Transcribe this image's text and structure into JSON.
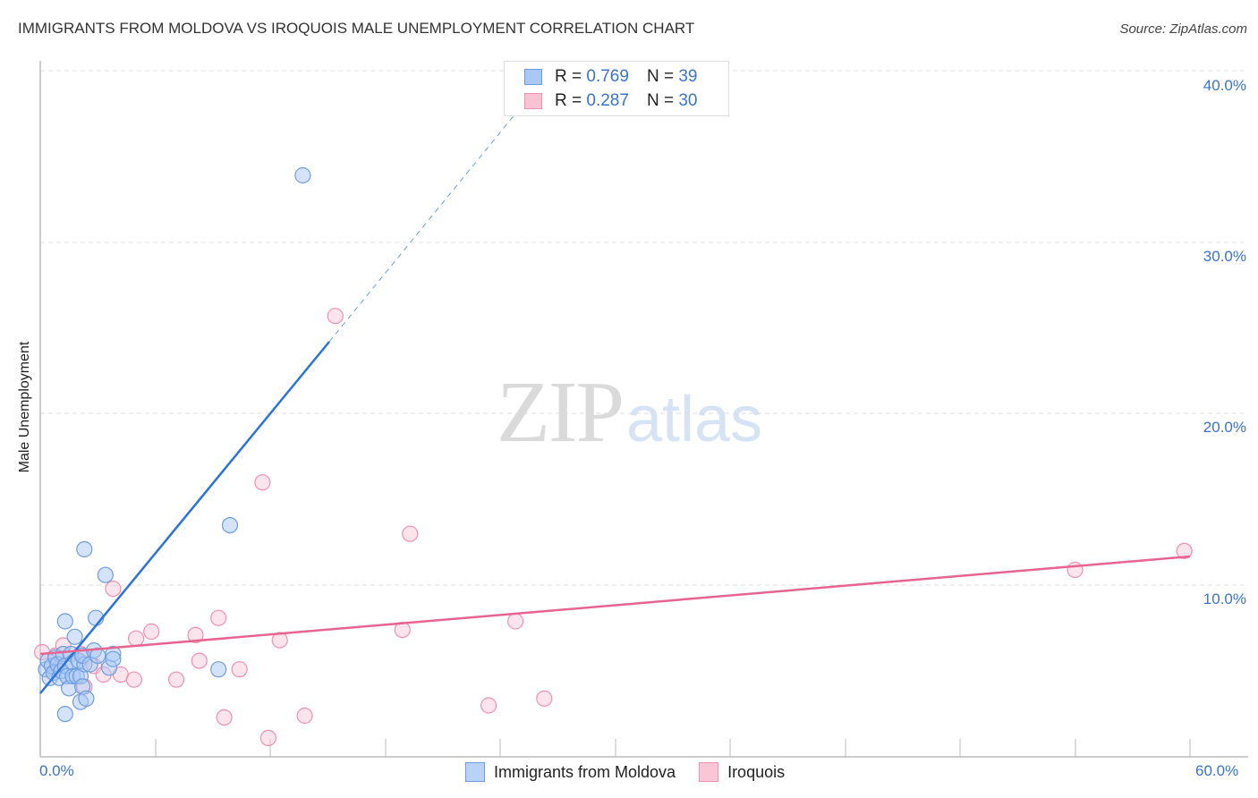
{
  "header": {
    "title": "IMMIGRANTS FROM MOLDOVA VS IROQUOIS MALE UNEMPLOYMENT CORRELATION CHART",
    "source": "Source: ZipAtlas.com"
  },
  "watermark": {
    "zip": "ZIP",
    "atlas": "atlas"
  },
  "legend": {
    "rows": [
      {
        "r_label": "R = ",
        "r_value": "0.769",
        "n_label": "N = ",
        "n_value": "39",
        "color": "#a9c8f3",
        "border": "#6d9de0"
      },
      {
        "r_label": "R = ",
        "r_value": "0.287",
        "n_label": "N = ",
        "n_value": "30",
        "color": "#f9c3d4",
        "border": "#ee91ae"
      }
    ]
  },
  "axes": {
    "ylabel": "Male Unemployment",
    "y_ticks": [
      "40.0%",
      "30.0%",
      "20.0%",
      "10.0%"
    ],
    "x_min_label": "0.0%",
    "x_max_label": "60.0%"
  },
  "bottom_legend": {
    "items": [
      {
        "label": "Immigrants from Moldova",
        "color": "#b8d3f7",
        "border": "#6d9de0"
      },
      {
        "label": "Iroquois",
        "color": "#fac6d6",
        "border": "#ee91ae"
      }
    ]
  },
  "colors": {
    "blue_line": "#2b73d6",
    "pink_line": "#e5658f",
    "tick_text": "#3a74cc"
  },
  "chart_data": {
    "type": "scatter",
    "title": "IMMIGRANTS FROM MOLDOVA VS IROQUOIS MALE UNEMPLOYMENT CORRELATION CHART",
    "xlabel": "",
    "ylabel": "Male Unemployment",
    "xlim": [
      0,
      60
    ],
    "ylim": [
      0,
      40
    ],
    "x_ticks": [
      "0.0%",
      "60.0%"
    ],
    "y_ticks": [
      "10.0%",
      "20.0%",
      "30.0%",
      "40.0%"
    ],
    "grid": "horizontal dashed",
    "legend_position": "top-center",
    "series": [
      {
        "name": "Immigrants from Moldova",
        "R": 0.769,
        "N": 39,
        "color": "#a9c8f3",
        "trend": {
          "x": [
            0,
            15.1
          ],
          "y": [
            3.7,
            24.2
          ],
          "dashed_extension_to": [
            25.4,
            38.4
          ]
        },
        "points": [
          [
            0.3,
            5.1
          ],
          [
            0.4,
            5.6
          ],
          [
            0.5,
            4.6
          ],
          [
            0.6,
            5.3
          ],
          [
            0.7,
            4.9
          ],
          [
            0.8,
            5.8
          ],
          [
            0.9,
            5.4
          ],
          [
            1.0,
            4.6
          ],
          [
            1.1,
            5.0
          ],
          [
            1.2,
            6.0
          ],
          [
            1.3,
            5.3
          ],
          [
            1.4,
            4.7
          ],
          [
            1.5,
            4.0
          ],
          [
            1.3,
            2.5
          ],
          [
            1.3,
            7.9
          ],
          [
            1.6,
            6.0
          ],
          [
            1.7,
            5.5
          ],
          [
            1.7,
            4.7
          ],
          [
            1.8,
            7.0
          ],
          [
            1.9,
            4.7
          ],
          [
            2.0,
            5.6
          ],
          [
            2.1,
            4.7
          ],
          [
            2.1,
            3.2
          ],
          [
            2.2,
            4.1
          ],
          [
            2.3,
            5.4
          ],
          [
            2.2,
            5.9
          ],
          [
            2.3,
            12.1
          ],
          [
            2.4,
            3.4
          ],
          [
            2.6,
            5.4
          ],
          [
            2.8,
            6.2
          ],
          [
            3.0,
            5.9
          ],
          [
            2.9,
            8.1
          ],
          [
            3.4,
            10.6
          ],
          [
            3.6,
            5.2
          ],
          [
            3.8,
            6.0
          ],
          [
            3.8,
            5.7
          ],
          [
            9.3,
            5.1
          ],
          [
            9.9,
            13.5
          ],
          [
            13.7,
            33.9
          ]
        ]
      },
      {
        "name": "Iroquois",
        "R": 0.287,
        "N": 30,
        "color": "#f9c3d4",
        "trend": {
          "x": [
            0,
            60
          ],
          "y": [
            6.0,
            11.7
          ]
        },
        "points": [
          [
            0.1,
            6.1
          ],
          [
            0.8,
            5.9
          ],
          [
            1.2,
            6.5
          ],
          [
            2.1,
            6.0
          ],
          [
            2.3,
            4.1
          ],
          [
            2.8,
            5.3
          ],
          [
            3.3,
            4.8
          ],
          [
            3.8,
            9.8
          ],
          [
            4.2,
            4.8
          ],
          [
            4.9,
            4.5
          ],
          [
            5.0,
            6.9
          ],
          [
            5.8,
            7.3
          ],
          [
            7.1,
            4.5
          ],
          [
            8.1,
            7.1
          ],
          [
            8.3,
            5.6
          ],
          [
            9.3,
            8.1
          ],
          [
            9.6,
            2.3
          ],
          [
            10.4,
            5.1
          ],
          [
            11.6,
            16.0
          ],
          [
            11.9,
            1.1
          ],
          [
            12.5,
            6.8
          ],
          [
            13.8,
            2.4
          ],
          [
            15.4,
            25.7
          ],
          [
            18.9,
            7.4
          ],
          [
            19.3,
            13.0
          ],
          [
            23.4,
            3.0
          ],
          [
            24.8,
            7.9
          ],
          [
            26.3,
            3.4
          ],
          [
            54.0,
            10.9
          ],
          [
            59.7,
            12.0
          ]
        ]
      }
    ]
  }
}
